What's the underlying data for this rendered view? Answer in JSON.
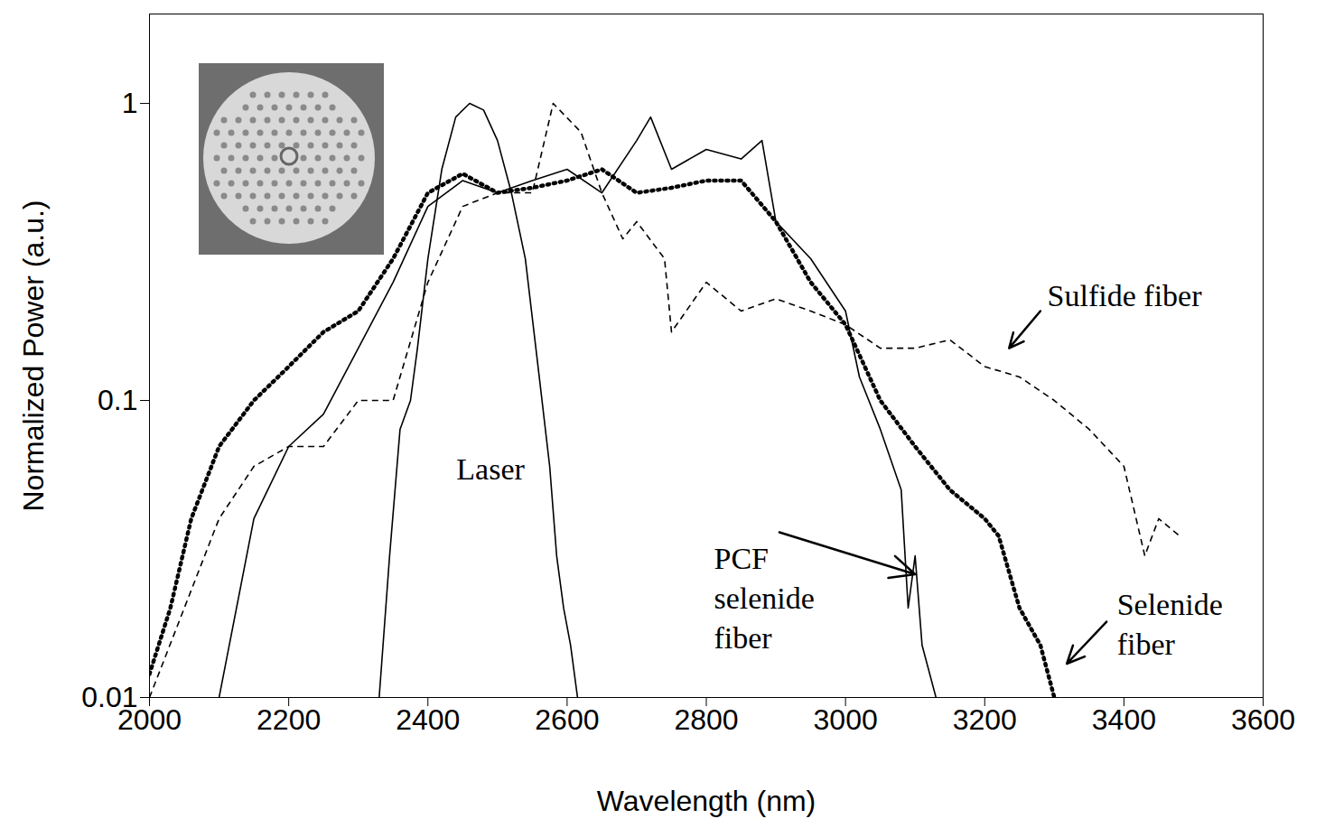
{
  "chart_data": {
    "type": "line",
    "x_label": "Wavelength (nm)",
    "y_label": "Normalized Power (a.u.)",
    "log": "y",
    "grid": false,
    "xlim": [
      2000,
      3600
    ],
    "xticks": [
      2000,
      2200,
      2400,
      2600,
      2800,
      3000,
      3200,
      3400,
      3600
    ],
    "ylim": [
      0.01,
      2
    ],
    "yticks": [
      0.01,
      0.1,
      1
    ],
    "series": [
      {
        "name": "Laser",
        "color": "#000000",
        "line_style": "solid",
        "x": [
          2330,
          2345,
          2360,
          2375,
          2385,
          2400,
          2420,
          2440,
          2460,
          2480,
          2500,
          2520,
          2540,
          2560,
          2575,
          2585,
          2595,
          2605,
          2615
        ],
        "values": [
          0.01,
          0.03,
          0.08,
          0.1,
          0.15,
          0.3,
          0.6,
          0.9,
          1.0,
          0.95,
          0.75,
          0.5,
          0.3,
          0.12,
          0.06,
          0.03,
          0.02,
          0.015,
          0.01
        ]
      },
      {
        "name": "PCF selenide fiber",
        "color": "#000000",
        "line_style": "solid",
        "x": [
          2100,
          2150,
          2200,
          2250,
          2300,
          2350,
          2400,
          2450,
          2500,
          2550,
          2600,
          2650,
          2700,
          2720,
          2750,
          2800,
          2850,
          2880,
          2900,
          2950,
          3000,
          3020,
          3050,
          3080,
          3090,
          3100,
          3110,
          3130
        ],
        "values": [
          0.01,
          0.04,
          0.07,
          0.09,
          0.15,
          0.25,
          0.45,
          0.55,
          0.5,
          0.55,
          0.6,
          0.5,
          0.75,
          0.9,
          0.6,
          0.7,
          0.65,
          0.75,
          0.4,
          0.3,
          0.2,
          0.12,
          0.08,
          0.05,
          0.02,
          0.03,
          0.015,
          0.01
        ]
      },
      {
        "name": "Selenide fiber",
        "color": "#000000",
        "line_style": "dotted",
        "x": [
          2000,
          2030,
          2060,
          2100,
          2150,
          2200,
          2250,
          2300,
          2350,
          2400,
          2450,
          2500,
          2550,
          2600,
          2650,
          2700,
          2750,
          2800,
          2850,
          2900,
          2950,
          3000,
          3050,
          3100,
          3150,
          3200,
          3220,
          3250,
          3280,
          3300
        ],
        "values": [
          0.012,
          0.02,
          0.04,
          0.07,
          0.1,
          0.13,
          0.17,
          0.2,
          0.3,
          0.5,
          0.58,
          0.5,
          0.52,
          0.55,
          0.6,
          0.5,
          0.52,
          0.55,
          0.55,
          0.4,
          0.25,
          0.18,
          0.1,
          0.07,
          0.05,
          0.04,
          0.035,
          0.02,
          0.015,
          0.01
        ]
      },
      {
        "name": "Sulfide fiber",
        "color": "#000000",
        "line_style": "dashed",
        "x": [
          2000,
          2050,
          2100,
          2150,
          2200,
          2250,
          2300,
          2350,
          2400,
          2450,
          2500,
          2550,
          2580,
          2620,
          2650,
          2680,
          2700,
          2740,
          2750,
          2800,
          2850,
          2900,
          2950,
          3000,
          3050,
          3100,
          3150,
          3200,
          3250,
          3300,
          3350,
          3400,
          3430,
          3450,
          3480
        ],
        "values": [
          0.01,
          0.02,
          0.04,
          0.06,
          0.07,
          0.07,
          0.1,
          0.1,
          0.25,
          0.45,
          0.5,
          0.5,
          1.0,
          0.8,
          0.5,
          0.35,
          0.4,
          0.3,
          0.17,
          0.25,
          0.2,
          0.22,
          0.2,
          0.18,
          0.15,
          0.15,
          0.16,
          0.13,
          0.12,
          0.1,
          0.08,
          0.06,
          0.03,
          0.04,
          0.035
        ]
      }
    ],
    "annotations": [
      {
        "series": "Laser",
        "x": 2490,
        "y": 0.06
      },
      {
        "series": "PCF selenide fiber",
        "x": 2811,
        "y": 0.022,
        "arrow": [
          [
            2905,
            0.036
          ],
          [
            3100,
            0.026
          ]
        ]
      },
      {
        "series": "Sulfide fiber",
        "x": 3290,
        "y": 0.23,
        "arrow": [
          [
            3280,
            0.2
          ],
          [
            3235,
            0.15
          ]
        ]
      },
      {
        "series": "Selenide fiber",
        "x": 3390,
        "y": 0.018,
        "arrow": [
          [
            3375,
            0.018
          ],
          [
            3318,
            0.013
          ]
        ]
      }
    ]
  }
}
